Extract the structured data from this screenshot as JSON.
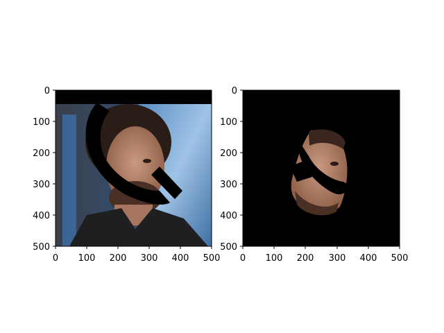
{
  "chart_data": [
    {
      "type": "image",
      "title": "",
      "xlabel": "",
      "ylabel": "",
      "xlim": [
        0,
        500
      ],
      "ylim": [
        500,
        0
      ],
      "xticks": [
        0,
        100,
        200,
        300,
        400,
        500
      ],
      "yticks": [
        0,
        100,
        200,
        300,
        400,
        500
      ],
      "xtick_labels": [
        "0",
        "100",
        "200",
        "300",
        "400",
        "500"
      ],
      "ytick_labels": [
        "0",
        "100",
        "200",
        "300",
        "400",
        "500"
      ],
      "grid": false,
      "content": "photo of a man's face partially covered by black masked regions",
      "mask_color": "#000000"
    },
    {
      "type": "image",
      "title": "",
      "xlabel": "",
      "ylabel": "",
      "xlim": [
        0,
        500
      ],
      "ylim": [
        500,
        0
      ],
      "xticks": [
        0,
        100,
        200,
        300,
        400,
        500
      ],
      "yticks": [
        0,
        100,
        200,
        300,
        400,
        500
      ],
      "xtick_labels": [
        "0",
        "100",
        "200",
        "300",
        "400",
        "500"
      ],
      "ytick_labels": [
        "0",
        "100",
        "200",
        "300",
        "400",
        "500"
      ],
      "grid": false,
      "content": "segmented face region on black background with masked stripe",
      "mask_color": "#000000"
    }
  ]
}
